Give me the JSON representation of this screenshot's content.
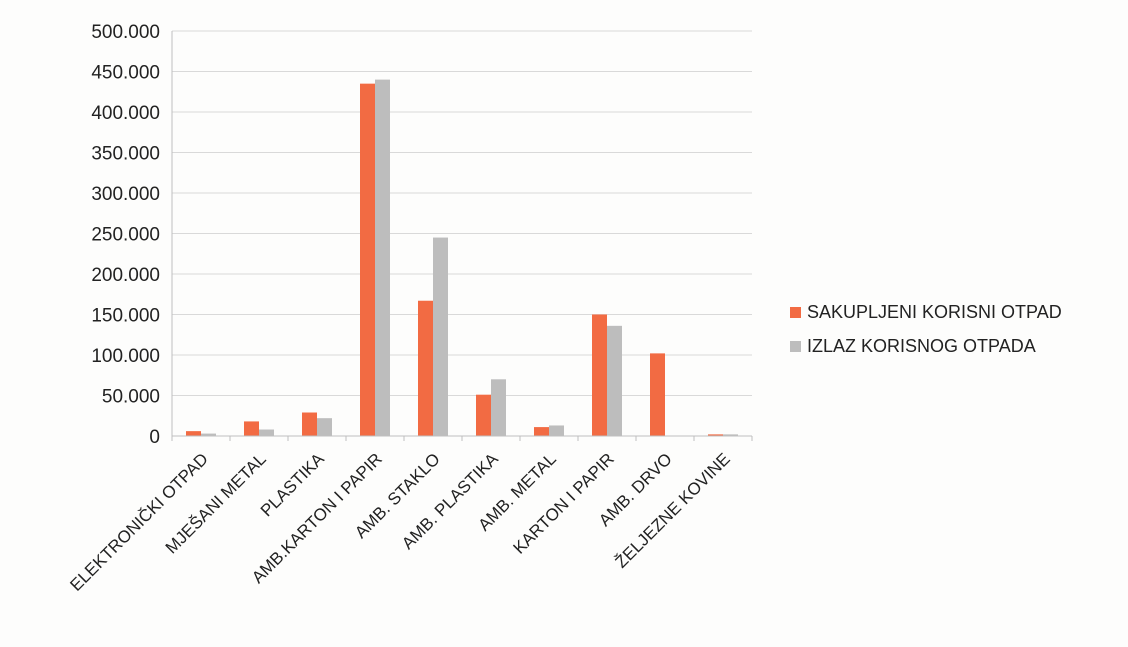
{
  "chart_data": {
    "type": "bar",
    "categories": [
      "ELEKTRONIČKI OTPAD",
      "MJEŠANI METAL",
      "PLASTIKA",
      "AMB.KARTON I PAPIR",
      "AMB. STAKLO",
      "AMB. PLASTIKA",
      "AMB. METAL",
      "KARTON I PAPIR",
      "AMB. DRVO",
      "ŽELJEZNE KOVINE"
    ],
    "series": [
      {
        "name": "SAKUPLJENI KORISNI OTPAD",
        "color": "#f26b43",
        "values": [
          6000,
          18000,
          29000,
          435000,
          167000,
          51000,
          11000,
          150000,
          102000,
          2000
        ]
      },
      {
        "name": "IZLAZ KORISNOG OTPADA",
        "color": "#bdbdbd",
        "values": [
          3000,
          8000,
          22000,
          440000,
          245000,
          70000,
          13000,
          136000,
          0,
          2000
        ]
      }
    ],
    "y_ticks": [
      "0",
      "50.000",
      "100.000",
      "150.000",
      "200.000",
      "250.000",
      "300.000",
      "350.000",
      "400.000",
      "450.000",
      "500.000"
    ],
    "ylim": [
      0,
      500000
    ],
    "grid": true,
    "legend_position": "right"
  }
}
